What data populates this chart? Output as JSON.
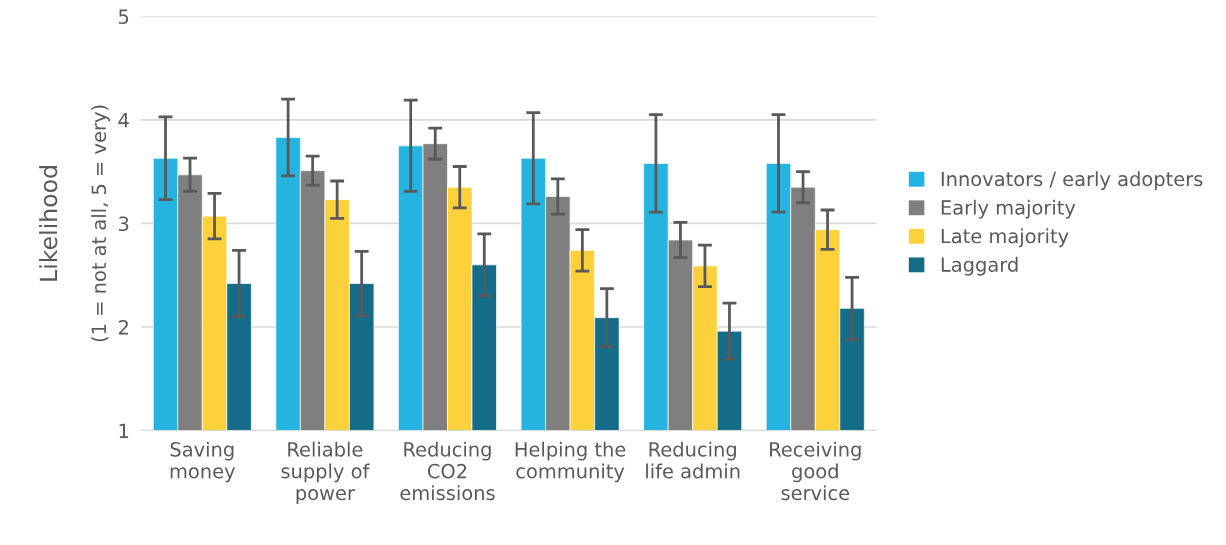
{
  "chart_data": {
    "type": "bar",
    "ylabel": "Likelihood",
    "annotations": [
      "(1 = not at all, 5 = very)"
    ],
    "categories": [
      "Saving\nmoney",
      "Reliable\nsupply of\npower",
      "Reducing\nCO2\nemissions",
      "Helping the\ncommunity",
      "Reducing\nlife admin",
      "Receiving\ngood\nservice"
    ],
    "series": [
      {
        "name": "Innovators / early adopters",
        "color": "#25b3e0",
        "values": [
          3.63,
          3.83,
          3.75,
          3.63,
          3.58,
          3.58
        ],
        "errors": [
          0.4,
          0.37,
          0.44,
          0.44,
          0.47,
          0.47
        ]
      },
      {
        "name": "Early majority",
        "color": "#7f7f7f",
        "values": [
          3.47,
          3.51,
          3.77,
          3.26,
          2.84,
          3.35
        ],
        "errors": [
          0.16,
          0.14,
          0.15,
          0.17,
          0.17,
          0.15
        ]
      },
      {
        "name": "Late majority",
        "color": "#fdd13b",
        "values": [
          3.07,
          3.23,
          3.35,
          2.74,
          2.59,
          2.94
        ],
        "errors": [
          0.22,
          0.18,
          0.2,
          0.2,
          0.2,
          0.19
        ]
      },
      {
        "name": "Laggard",
        "color": "#146c88",
        "values": [
          2.42,
          2.42,
          2.6,
          2.09,
          1.96,
          2.18
        ],
        "errors": [
          0.32,
          0.31,
          0.3,
          0.28,
          0.27,
          0.3
        ]
      }
    ],
    "ylim": [
      1,
      5
    ],
    "yticks": [
      1,
      2,
      3,
      4,
      5
    ],
    "grid": "y",
    "legend": "right"
  }
}
